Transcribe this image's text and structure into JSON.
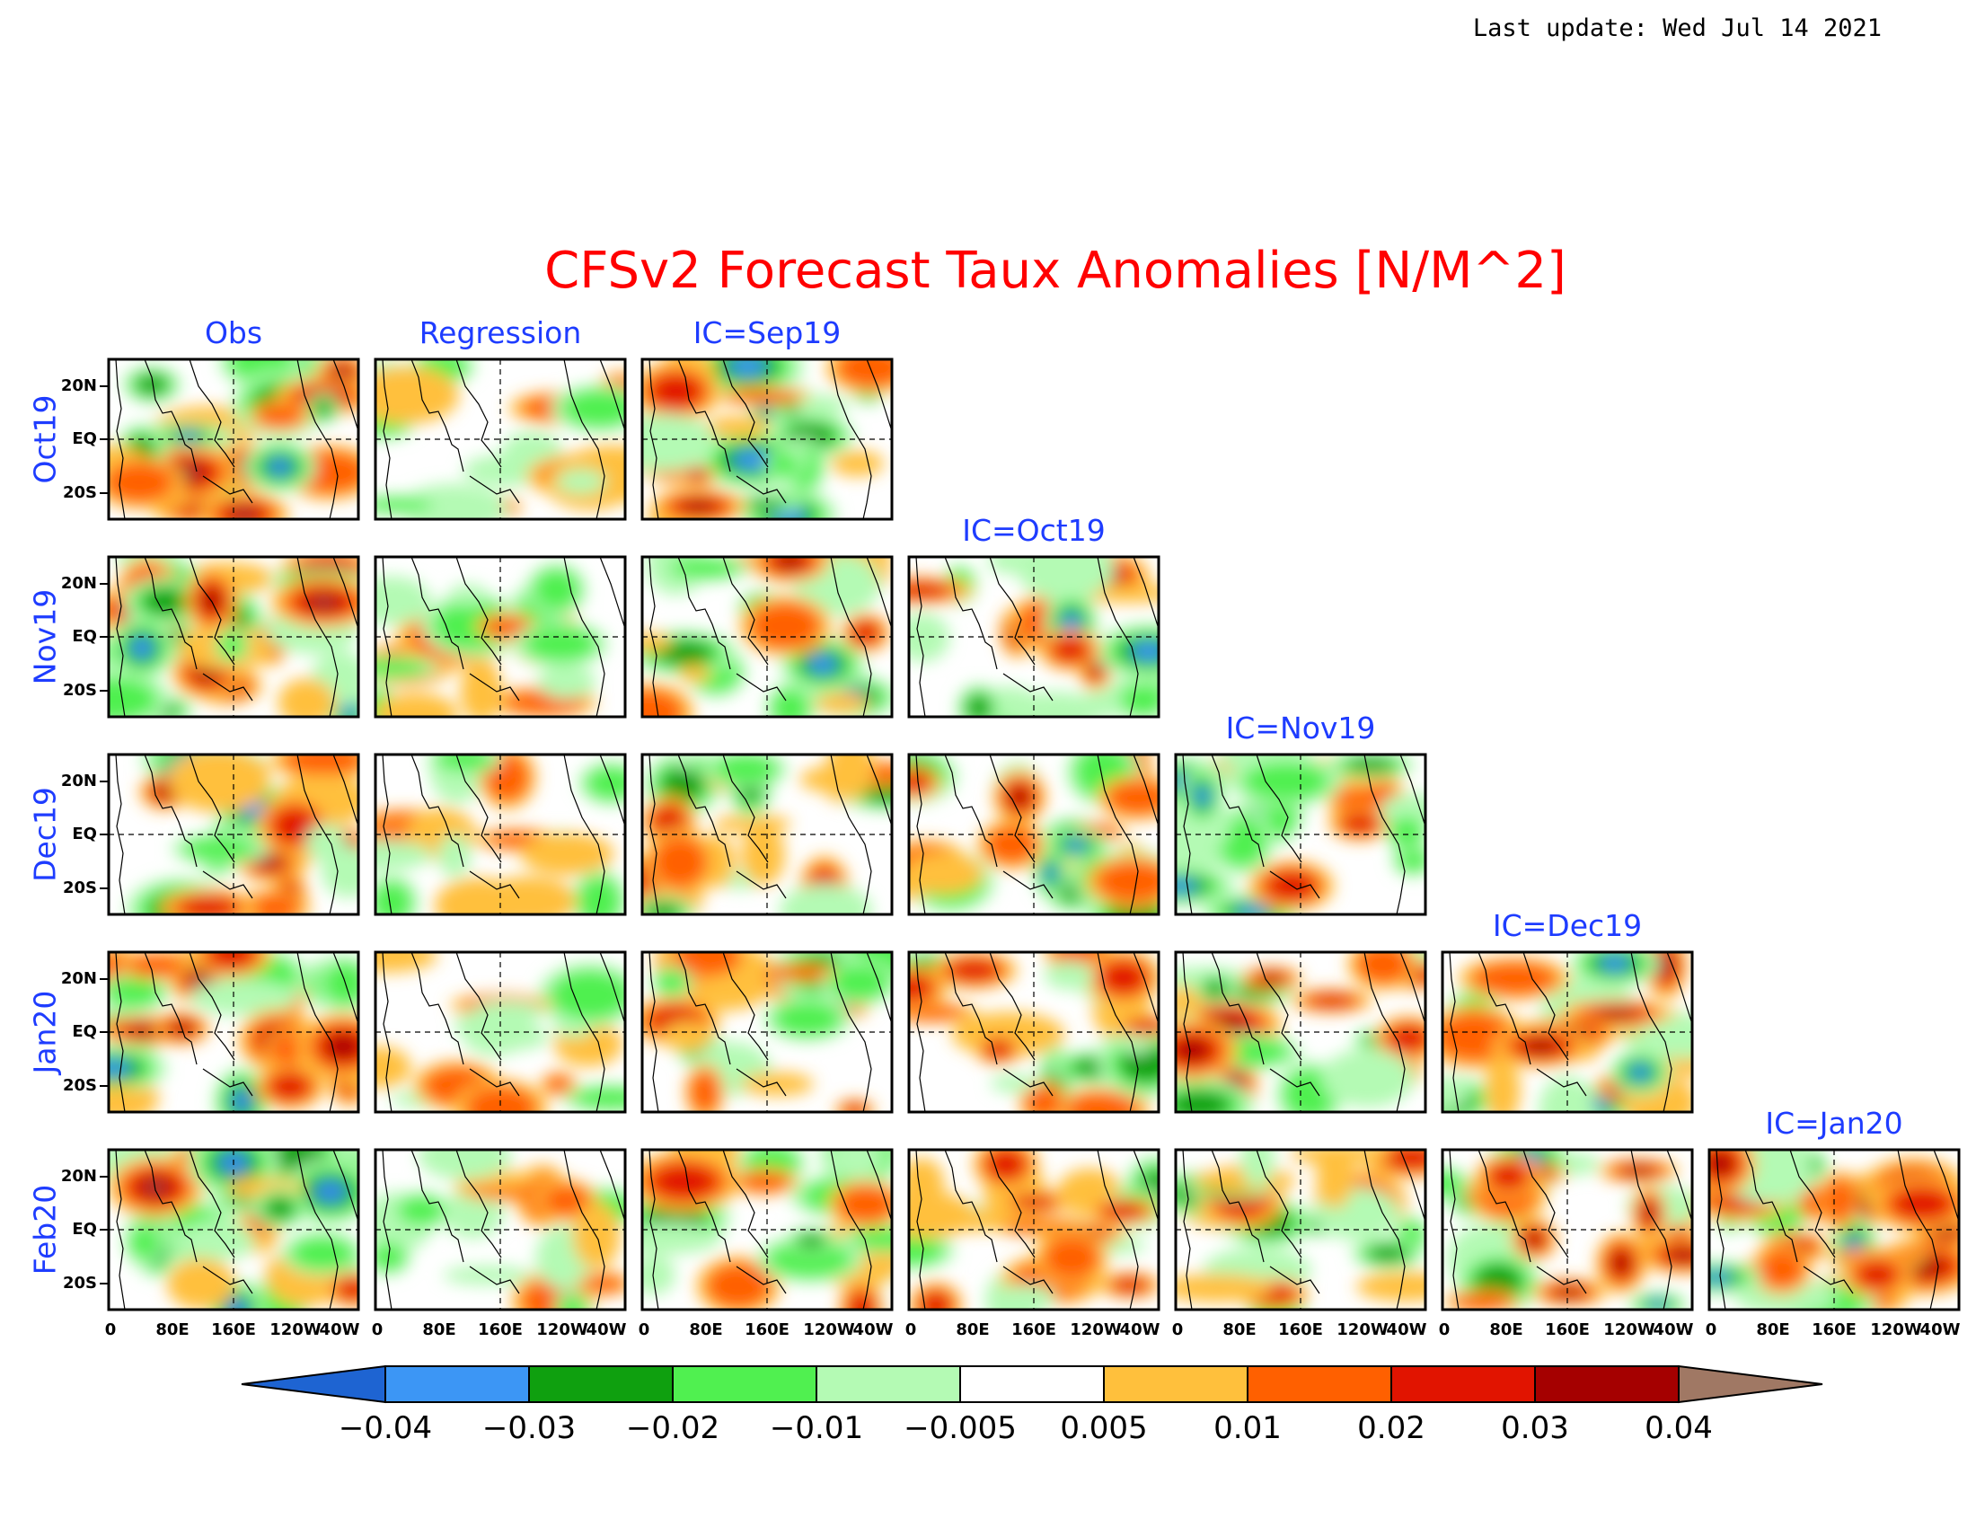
{
  "last_update": "Last update: Wed Jul 14 2021",
  "colors": {
    "title": "#ff0000",
    "labels": "#1e3cff",
    "palette": [
      "#1e64d2",
      "#3c96f5",
      "#0fa00f",
      "#50f050",
      "#b4fab4",
      "#ffffff",
      "#ffc03c",
      "#ff6000",
      "#e11400",
      "#a50000",
      "#a07864"
    ]
  },
  "chart_data": {
    "type": "heatmap",
    "title": "CFSv2 Forecast Taux Anomalies [N/M^2]",
    "column_labels": [
      "Obs",
      "Regression"
    ],
    "ic_labels": [
      "IC=Sep19",
      "IC=Oct19",
      "IC=Nov19",
      "IC=Dec19",
      "IC=Jan20"
    ],
    "row_labels": [
      "Oct19",
      "Nov19",
      "Dec19",
      "Jan20",
      "Feb20"
    ],
    "x_ticks": [
      "0",
      "80E",
      "160E",
      "120W",
      "40W"
    ],
    "y_ticks": [
      "20N",
      "EQ",
      "20S"
    ],
    "colorbar": {
      "levels": [
        "-0.04",
        "-0.03",
        "-0.02",
        "-0.01",
        "-0.005",
        "0.005",
        "0.01",
        "0.02",
        "0.03",
        "0.04"
      ],
      "extend": "both"
    },
    "grid": "dashed equator and dateline reference lines"
  }
}
